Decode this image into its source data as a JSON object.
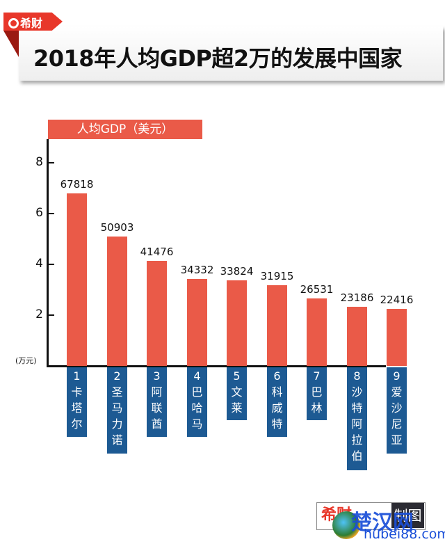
{
  "header": {
    "brand": "希财",
    "title": "2018年人均GDP超2万的发展中国家"
  },
  "legend": {
    "label": "人均GDP（美元）",
    "color": "#ea5a48"
  },
  "axis": {
    "unit": "(万元)",
    "ticks": [
      "8",
      "6",
      "4",
      "2"
    ]
  },
  "bars": [
    {
      "rank": "1",
      "value": "67818",
      "name_chars": [
        "卡",
        "塔",
        "尔"
      ]
    },
    {
      "rank": "2",
      "value": "50903",
      "name_chars": [
        "圣",
        "马",
        "力",
        "诺"
      ]
    },
    {
      "rank": "3",
      "value": "41476",
      "name_chars": [
        "阿",
        "联",
        "酋"
      ]
    },
    {
      "rank": "4",
      "value": "34332",
      "name_chars": [
        "巴",
        "哈",
        "马"
      ]
    },
    {
      "rank": "5",
      "value": "33824",
      "name_chars": [
        "文",
        "莱"
      ]
    },
    {
      "rank": "6",
      "value": "31915",
      "name_chars": [
        "科",
        "威",
        "特"
      ]
    },
    {
      "rank": "7",
      "value": "26531",
      "name_chars": [
        "巴",
        "林"
      ]
    },
    {
      "rank": "8",
      "value": "23186",
      "name_chars": [
        "沙",
        "特",
        "阿",
        "拉",
        "伯"
      ]
    },
    {
      "rank": "9",
      "value": "22416",
      "name_chars": [
        "爱",
        "沙",
        "尼",
        "亚"
      ]
    }
  ],
  "footer": {
    "brand": "希财",
    "made": "制图",
    "watermark": "楚汉网",
    "watermark_url": "hubei88.com"
  },
  "colors": {
    "bar": "#ea5a48",
    "label_bg": "#1d5a93",
    "brand_red": "#e8372a"
  },
  "chart_data": {
    "type": "bar",
    "title": "2018年人均GDP超2万的发展中国家",
    "legend": [
      "人均GDP（美元）"
    ],
    "categories": [
      "卡塔尔",
      "圣马力诺",
      "阿联酋",
      "巴哈马",
      "文莱",
      "科威特",
      "巴林",
      "沙特阿拉伯",
      "爱沙尼亚"
    ],
    "values": [
      67818,
      50903,
      41476,
      34332,
      33824,
      31915,
      26531,
      23186,
      22416
    ],
    "xlabel": "",
    "ylabel": "(万元)",
    "yticks": [
      2,
      4,
      6,
      8
    ],
    "ylim": [
      0,
      8.9
    ],
    "grid": false
  }
}
